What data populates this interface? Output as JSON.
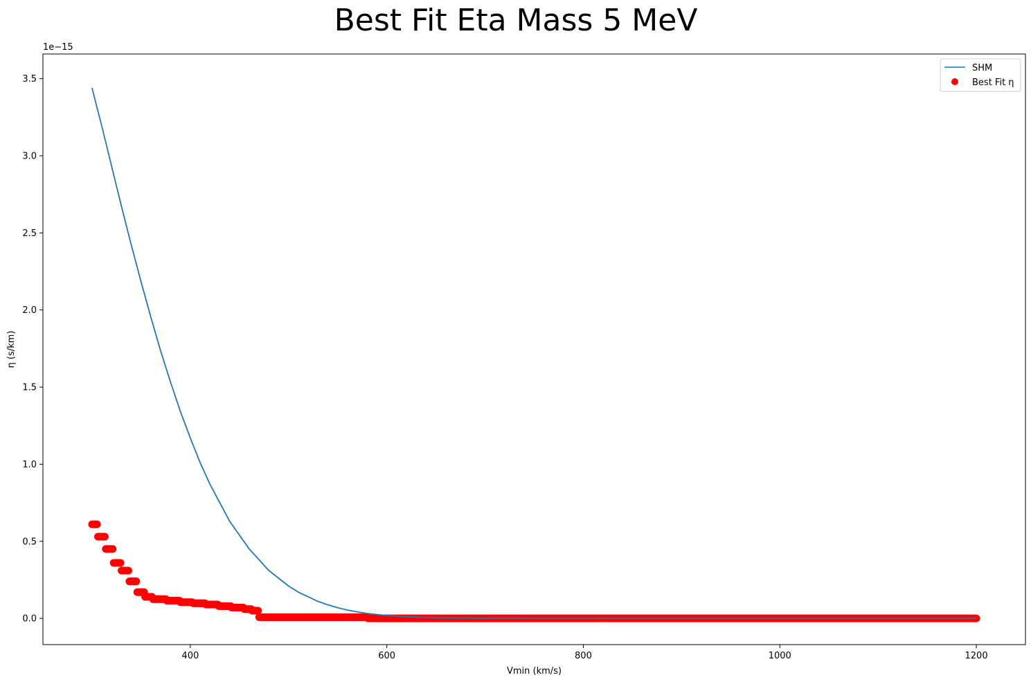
{
  "chart_data": {
    "type": "line",
    "title": "Best Fit Eta Mass 5 MeV",
    "xlabel": "Vmin (km/s)",
    "ylabel": "η (s/km)",
    "y_offset_label": "1e−15",
    "y_scale": 1e-15,
    "xlim": [
      250,
      1250
    ],
    "ylim": [
      -0.17,
      3.66
    ],
    "x_ticks": [
      400,
      600,
      800,
      1000,
      1200
    ],
    "x_tick_labels": [
      "400",
      "600",
      "800",
      "1000",
      "1200"
    ],
    "y_ticks": [
      0.0,
      0.5,
      1.0,
      1.5,
      2.0,
      2.5,
      3.0,
      3.5
    ],
    "y_tick_labels": [
      "0.0",
      "0.5",
      "1.0",
      "1.5",
      "2.0",
      "2.5",
      "3.0",
      "3.5"
    ],
    "grid": false,
    "legend_position": "top-right",
    "series": [
      {
        "name": "SHM",
        "kind": "line",
        "color": "#1f77b4",
        "x": [
          300,
          310,
          320,
          330,
          340,
          350,
          360,
          370,
          380,
          390,
          400,
          410,
          420,
          430,
          440,
          450,
          460,
          470,
          480,
          490,
          500,
          510,
          520,
          530,
          540,
          550,
          560,
          570,
          580,
          590,
          600,
          620,
          640,
          660,
          680,
          700,
          750,
          800,
          900,
          1000,
          1100,
          1200
        ],
        "y": [
          3.44,
          3.19,
          2.93,
          2.67,
          2.42,
          2.18,
          1.95,
          1.73,
          1.53,
          1.34,
          1.17,
          1.01,
          0.87,
          0.75,
          0.63,
          0.54,
          0.45,
          0.38,
          0.31,
          0.26,
          0.21,
          0.17,
          0.14,
          0.11,
          0.088,
          0.069,
          0.054,
          0.042,
          0.032,
          0.025,
          0.019,
          0.011,
          0.0062,
          0.0035,
          0.0019,
          0.001,
          0.0002,
          4e-05,
          0.0,
          0.0,
          0.0,
          0.0
        ]
      },
      {
        "name": "Best Fit η",
        "kind": "scatter",
        "color": "#ff0000",
        "steps": [
          {
            "x_from": 300,
            "x_to": 305,
            "y": 0.61
          },
          {
            "x_from": 306,
            "x_to": 313,
            "y": 0.53
          },
          {
            "x_from": 314,
            "x_to": 321,
            "y": 0.45
          },
          {
            "x_from": 322,
            "x_to": 329,
            "y": 0.36
          },
          {
            "x_from": 330,
            "x_to": 337,
            "y": 0.31
          },
          {
            "x_from": 338,
            "x_to": 345,
            "y": 0.24
          },
          {
            "x_from": 346,
            "x_to": 353,
            "y": 0.17
          },
          {
            "x_from": 354,
            "x_to": 361,
            "y": 0.14
          },
          {
            "x_from": 362,
            "x_to": 375,
            "y": 0.125
          },
          {
            "x_from": 376,
            "x_to": 389,
            "y": 0.115
          },
          {
            "x_from": 390,
            "x_to": 402,
            "y": 0.105
          },
          {
            "x_from": 403,
            "x_to": 415,
            "y": 0.098
          },
          {
            "x_from": 416,
            "x_to": 428,
            "y": 0.09
          },
          {
            "x_from": 429,
            "x_to": 441,
            "y": 0.08
          },
          {
            "x_from": 442,
            "x_to": 454,
            "y": 0.07
          },
          {
            "x_from": 455,
            "x_to": 462,
            "y": 0.06
          },
          {
            "x_from": 463,
            "x_to": 469,
            "y": 0.05
          },
          {
            "x_from": 470,
            "x_to": 580,
            "y": 0.008
          },
          {
            "x_from": 581,
            "x_to": 1200,
            "y": 0.0
          }
        ]
      }
    ]
  }
}
